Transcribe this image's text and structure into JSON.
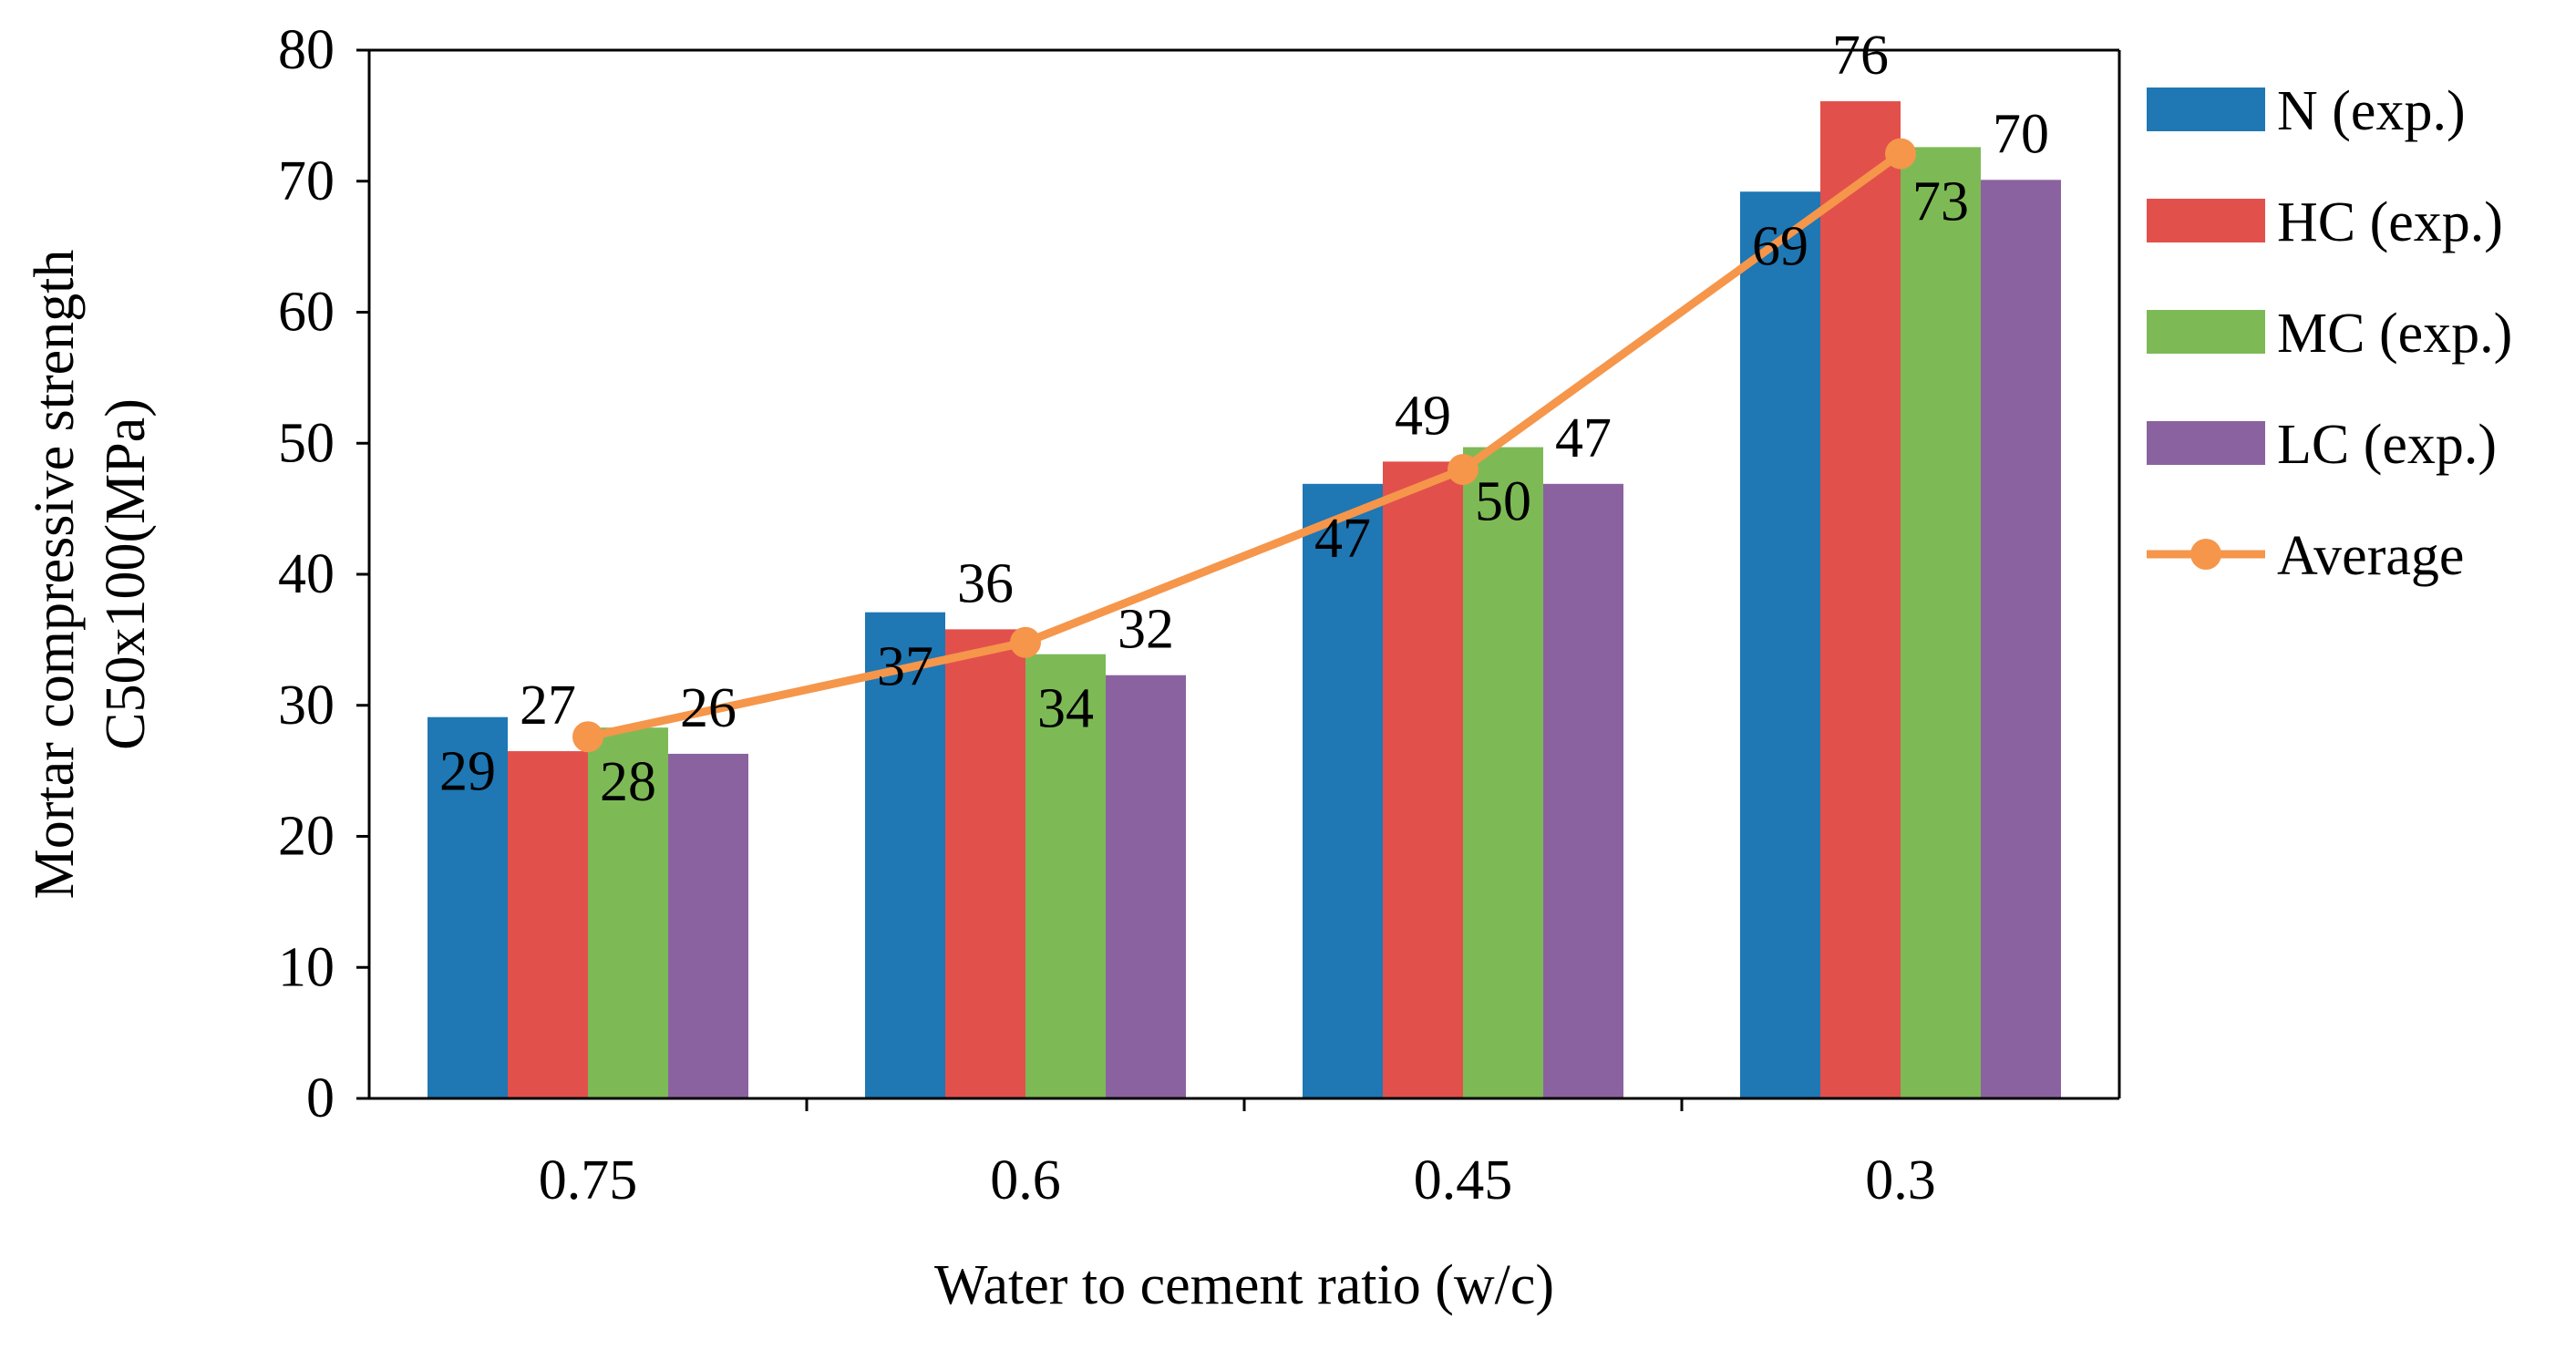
{
  "chart_data": {
    "type": "bar",
    "title": "",
    "xlabel": "Water to cement ratio (w/c)",
    "ylabel_lines": [
      "Mortar compressive strength",
      "C50x100(MPa)"
    ],
    "categories": [
      "0.75",
      "0.6",
      "0.45",
      "0.3"
    ],
    "ylim": [
      0,
      80
    ],
    "yticks": [
      0,
      10,
      20,
      30,
      40,
      50,
      60,
      70,
      80
    ],
    "grid": false,
    "legend_position": "right",
    "series": [
      {
        "name": "N (exp.)",
        "type": "bar",
        "color": "#1f77b4",
        "values": [
          29.1,
          37.1,
          46.9,
          69.2
        ],
        "labels": [
          "29",
          "37",
          "47",
          "69"
        ],
        "label_position": "inside-top"
      },
      {
        "name": "HC (exp.)",
        "type": "bar",
        "color": "#e2504c",
        "values": [
          26.5,
          35.8,
          48.6,
          76.1
        ],
        "labels": [
          "27",
          "36",
          "49",
          "76"
        ],
        "label_position": "above"
      },
      {
        "name": "MC (exp.)",
        "type": "bar",
        "color": "#7dba56",
        "values": [
          28.3,
          33.9,
          49.7,
          72.6
        ],
        "labels": [
          "28",
          "34",
          "50",
          "73"
        ],
        "label_position": "inside-top"
      },
      {
        "name": "LC (exp.)",
        "type": "bar",
        "color": "#8b62a0",
        "values": [
          26.3,
          32.3,
          46.9,
          70.1
        ],
        "labels": [
          "26",
          "32",
          "47",
          "70"
        ],
        "label_position": "above"
      },
      {
        "name": "Average",
        "type": "line",
        "color": "#f5964b",
        "values": [
          27.6,
          34.8,
          48.0,
          72.1
        ]
      }
    ]
  }
}
